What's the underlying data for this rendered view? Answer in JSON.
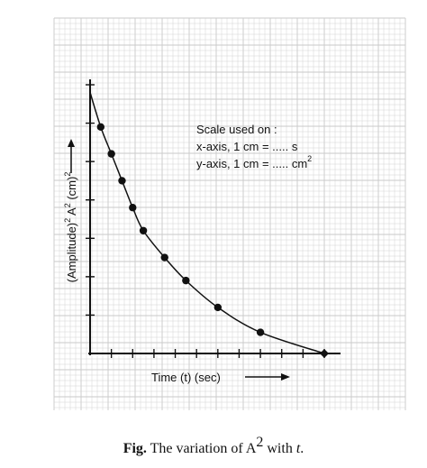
{
  "chart_data": {
    "type": "scatter",
    "title": "",
    "xlabel": "Time (t) (sec)",
    "ylabel_parts": {
      "a": "(Amplitude)",
      "b": "2",
      "c": " A",
      "d": "2",
      "e": " (cm)",
      "f": "2"
    },
    "scale_note": {
      "title": "Scale used on :",
      "x_line": "x-axis, 1 cm = ..... s",
      "y_line": "y-axis, 1 cm = ..... cm",
      "y_sup": "2"
    },
    "x_ticks": [
      0,
      1,
      2,
      3,
      4,
      5,
      6,
      7,
      8,
      9,
      10,
      11
    ],
    "y_ticks": [
      0,
      1,
      2,
      3,
      4,
      5,
      6,
      7
    ],
    "xlim": [
      0,
      11
    ],
    "ylim": [
      0,
      7
    ],
    "grid": true,
    "x": [
      0.5,
      1.0,
      1.5,
      2.0,
      2.5,
      3.5,
      4.5,
      6.0,
      8.0,
      11.0
    ],
    "y": [
      5.9,
      5.2,
      4.5,
      3.8,
      3.2,
      2.5,
      1.9,
      1.2,
      0.55,
      0.0
    ],
    "curve_start": [
      0,
      6.8
    ],
    "points_color": "#111111",
    "grid_color": "#c9c9c9"
  },
  "caption": {
    "prefix": "Fig.",
    "text": " The variation of A",
    "sup": "2",
    "suffix": " with ",
    "var": "t",
    "end": "."
  }
}
